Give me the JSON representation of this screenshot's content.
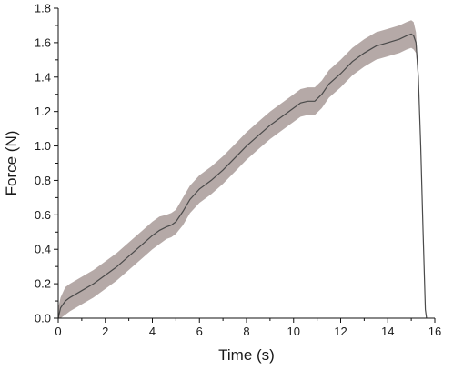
{
  "chart_data": {
    "type": "line",
    "title": "",
    "xlabel": "Time (s)",
    "ylabel": "Force (N)",
    "xlim": [
      0,
      16
    ],
    "ylim": [
      0.0,
      1.8
    ],
    "x_ticks": [
      0,
      2,
      4,
      6,
      8,
      10,
      12,
      14,
      16
    ],
    "x_tick_labels": [
      "0",
      "2",
      "4",
      "6",
      "8",
      "10",
      "12",
      "14",
      "16"
    ],
    "y_ticks": [
      0.0,
      0.2,
      0.4,
      0.6,
      0.8,
      1.0,
      1.2,
      1.4,
      1.6,
      1.8
    ],
    "y_tick_labels": [
      "0.0",
      "0.2",
      "0.4",
      "0.6",
      "0.8",
      "1.0",
      "1.2",
      "1.4",
      "1.6",
      "1.8"
    ],
    "grid": false,
    "legend": "none",
    "colors": {
      "line": "#4a4a4a",
      "band": "#a89a98"
    },
    "series": [
      {
        "x": [
          0,
          0.1,
          0.3,
          0.5,
          1.0,
          1.5,
          2.0,
          2.5,
          3.0,
          3.5,
          4.0,
          4.3,
          4.6,
          4.8,
          5.0,
          5.3,
          5.6,
          6.0,
          6.5,
          7.0,
          7.5,
          8.0,
          8.5,
          9.0,
          9.5,
          10.0,
          10.3,
          10.6,
          10.9,
          11.2,
          11.5,
          12.0,
          12.5,
          13.0,
          13.5,
          14.0,
          14.5,
          14.8,
          15.0,
          15.1,
          15.2,
          15.3,
          15.4,
          15.5,
          15.6,
          15.65
        ],
        "y": [
          0.0,
          0.06,
          0.1,
          0.12,
          0.16,
          0.2,
          0.25,
          0.3,
          0.36,
          0.42,
          0.48,
          0.51,
          0.53,
          0.54,
          0.56,
          0.62,
          0.69,
          0.75,
          0.8,
          0.86,
          0.93,
          1.0,
          1.06,
          1.12,
          1.17,
          1.22,
          1.25,
          1.26,
          1.26,
          1.3,
          1.36,
          1.42,
          1.49,
          1.54,
          1.58,
          1.6,
          1.62,
          1.64,
          1.65,
          1.64,
          1.6,
          1.4,
          1.0,
          0.5,
          0.05,
          0.0
        ],
        "band_upper": [
          0.06,
          0.12,
          0.18,
          0.2,
          0.24,
          0.28,
          0.33,
          0.38,
          0.44,
          0.5,
          0.56,
          0.59,
          0.6,
          0.61,
          0.63,
          0.7,
          0.77,
          0.83,
          0.88,
          0.94,
          1.01,
          1.08,
          1.14,
          1.2,
          1.25,
          1.3,
          1.33,
          1.34,
          1.34,
          1.38,
          1.44,
          1.5,
          1.57,
          1.62,
          1.66,
          1.68,
          1.7,
          1.72,
          1.73,
          1.72,
          1.66,
          1.42,
          1.0,
          0.5,
          0.05,
          0.0
        ],
        "band_lower": [
          0.0,
          0.0,
          0.02,
          0.04,
          0.08,
          0.12,
          0.17,
          0.22,
          0.28,
          0.34,
          0.4,
          0.43,
          0.46,
          0.47,
          0.49,
          0.54,
          0.61,
          0.67,
          0.72,
          0.78,
          0.85,
          0.92,
          0.98,
          1.04,
          1.09,
          1.14,
          1.17,
          1.18,
          1.18,
          1.22,
          1.28,
          1.34,
          1.41,
          1.46,
          1.5,
          1.52,
          1.54,
          1.56,
          1.57,
          1.56,
          1.54,
          1.38,
          1.0,
          0.5,
          0.05,
          0.0
        ]
      }
    ]
  }
}
